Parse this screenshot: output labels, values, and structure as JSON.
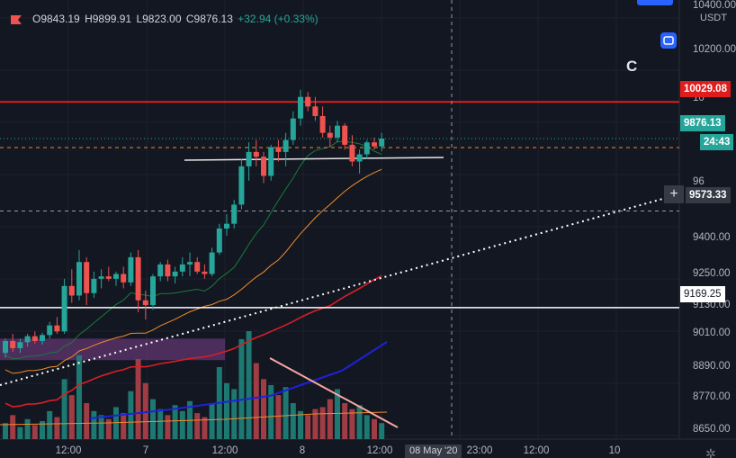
{
  "legend": {
    "open": "O9843.19",
    "high": "H9899.91",
    "low": "L9823.00",
    "close": "C9876.13",
    "change": "+32.94 (+0.33%)"
  },
  "price_axis": {
    "currency": "USDT",
    "ticks": [
      "10400.00",
      "10200.00",
      "9400.00",
      "9250.00",
      "9130.00",
      "9010.00",
      "8890.00",
      "8770.00",
      "8650.00"
    ],
    "partial_ticks": [
      "10",
      "96",
      "9"
    ],
    "tags": {
      "resistance": "10029.08",
      "last_price": "9876.13",
      "countdown": "24:43",
      "crosshair": "9573.33",
      "support_line": "9169.25"
    }
  },
  "time_axis": {
    "labels": [
      "12:00",
      "7",
      "12:00",
      "8",
      "12:00",
      "23:00",
      "12:00",
      "10"
    ],
    "crosshair": "08 May '20"
  },
  "annotation": "C",
  "colors": {
    "background": "#131722",
    "up": "#26a69a",
    "down": "#ef5350",
    "resistance": "#e01c1c",
    "ma_slow": "#1e22d8",
    "ma_mid": "#d81f26",
    "ma_orange": "#f28c28",
    "ma_green": "#1b7a3a"
  },
  "chart_data": {
    "type": "candlestick",
    "ylim": [
      8620,
      10440
    ],
    "series_candles": [
      [
        8980,
        9040,
        8960,
        9030
      ],
      [
        9030,
        9060,
        8985,
        9000
      ],
      [
        9000,
        9040,
        8980,
        9025
      ],
      [
        9025,
        9060,
        9005,
        9050
      ],
      [
        9050,
        9070,
        9020,
        9030
      ],
      [
        9030,
        9065,
        9015,
        9055
      ],
      [
        9055,
        9110,
        9040,
        9095
      ],
      [
        9095,
        9130,
        9060,
        9070
      ],
      [
        9070,
        9290,
        9060,
        9260
      ],
      [
        9260,
        9330,
        9190,
        9220
      ],
      [
        9220,
        9410,
        9200,
        9360
      ],
      [
        9360,
        9380,
        9180,
        9230
      ],
      [
        9230,
        9320,
        9210,
        9290
      ],
      [
        9290,
        9330,
        9250,
        9300
      ],
      [
        9300,
        9340,
        9280,
        9290
      ],
      [
        9290,
        9320,
        9260,
        9310
      ],
      [
        9310,
        9340,
        9250,
        9275
      ],
      [
        9275,
        9400,
        9260,
        9380
      ],
      [
        9380,
        9410,
        9150,
        9200
      ],
      [
        9200,
        9240,
        9120,
        9180
      ],
      [
        9180,
        9310,
        9160,
        9300
      ],
      [
        9300,
        9360,
        9280,
        9350
      ],
      [
        9350,
        9370,
        9280,
        9300
      ],
      [
        9300,
        9340,
        9270,
        9320
      ],
      [
        9320,
        9380,
        9300,
        9350
      ],
      [
        9350,
        9400,
        9300,
        9360
      ],
      [
        9360,
        9380,
        9310,
        9320
      ],
      [
        9320,
        9350,
        9290,
        9310
      ],
      [
        9310,
        9420,
        9300,
        9400
      ],
      [
        9400,
        9520,
        9390,
        9500
      ],
      [
        9500,
        9560,
        9470,
        9520
      ],
      [
        9520,
        9620,
        9500,
        9600
      ],
      [
        9600,
        9790,
        9580,
        9760
      ],
      [
        9760,
        9860,
        9700,
        9820
      ],
      [
        9820,
        9870,
        9760,
        9800
      ],
      [
        9800,
        9820,
        9690,
        9720
      ],
      [
        9720,
        9850,
        9700,
        9840
      ],
      [
        9840,
        9870,
        9780,
        9820
      ],
      [
        9820,
        9900,
        9760,
        9870
      ],
      [
        9870,
        9990,
        9850,
        9960
      ],
      [
        9960,
        10080,
        9930,
        10050
      ],
      [
        10050,
        10070,
        9990,
        10010
      ],
      [
        10010,
        10050,
        9950,
        9970
      ],
      [
        9970,
        10010,
        9880,
        9900
      ],
      [
        9900,
        9930,
        9840,
        9880
      ],
      [
        9880,
        9950,
        9860,
        9930
      ],
      [
        9930,
        9940,
        9830,
        9850
      ],
      [
        9850,
        9890,
        9760,
        9780
      ],
      [
        9780,
        9830,
        9730,
        9810
      ],
      [
        9810,
        9870,
        9790,
        9860
      ],
      [
        9860,
        9880,
        9830,
        9843
      ],
      [
        9843,
        9900,
        9823,
        9876
      ]
    ],
    "volumes": [
      8,
      12,
      6,
      10,
      7,
      9,
      14,
      11,
      30,
      22,
      42,
      18,
      14,
      12,
      10,
      16,
      13,
      24,
      40,
      28,
      20,
      15,
      12,
      17,
      14,
      19,
      13,
      11,
      18,
      36,
      28,
      25,
      50,
      54,
      38,
      30,
      27,
      22,
      26,
      18,
      14,
      12,
      15,
      16,
      20,
      25,
      18,
      15,
      17,
      12,
      10,
      8
    ],
    "levels": {
      "resistance": 10029.08,
      "last": 9876.13,
      "crosshair": 9573.33,
      "support": 9169.25
    }
  }
}
